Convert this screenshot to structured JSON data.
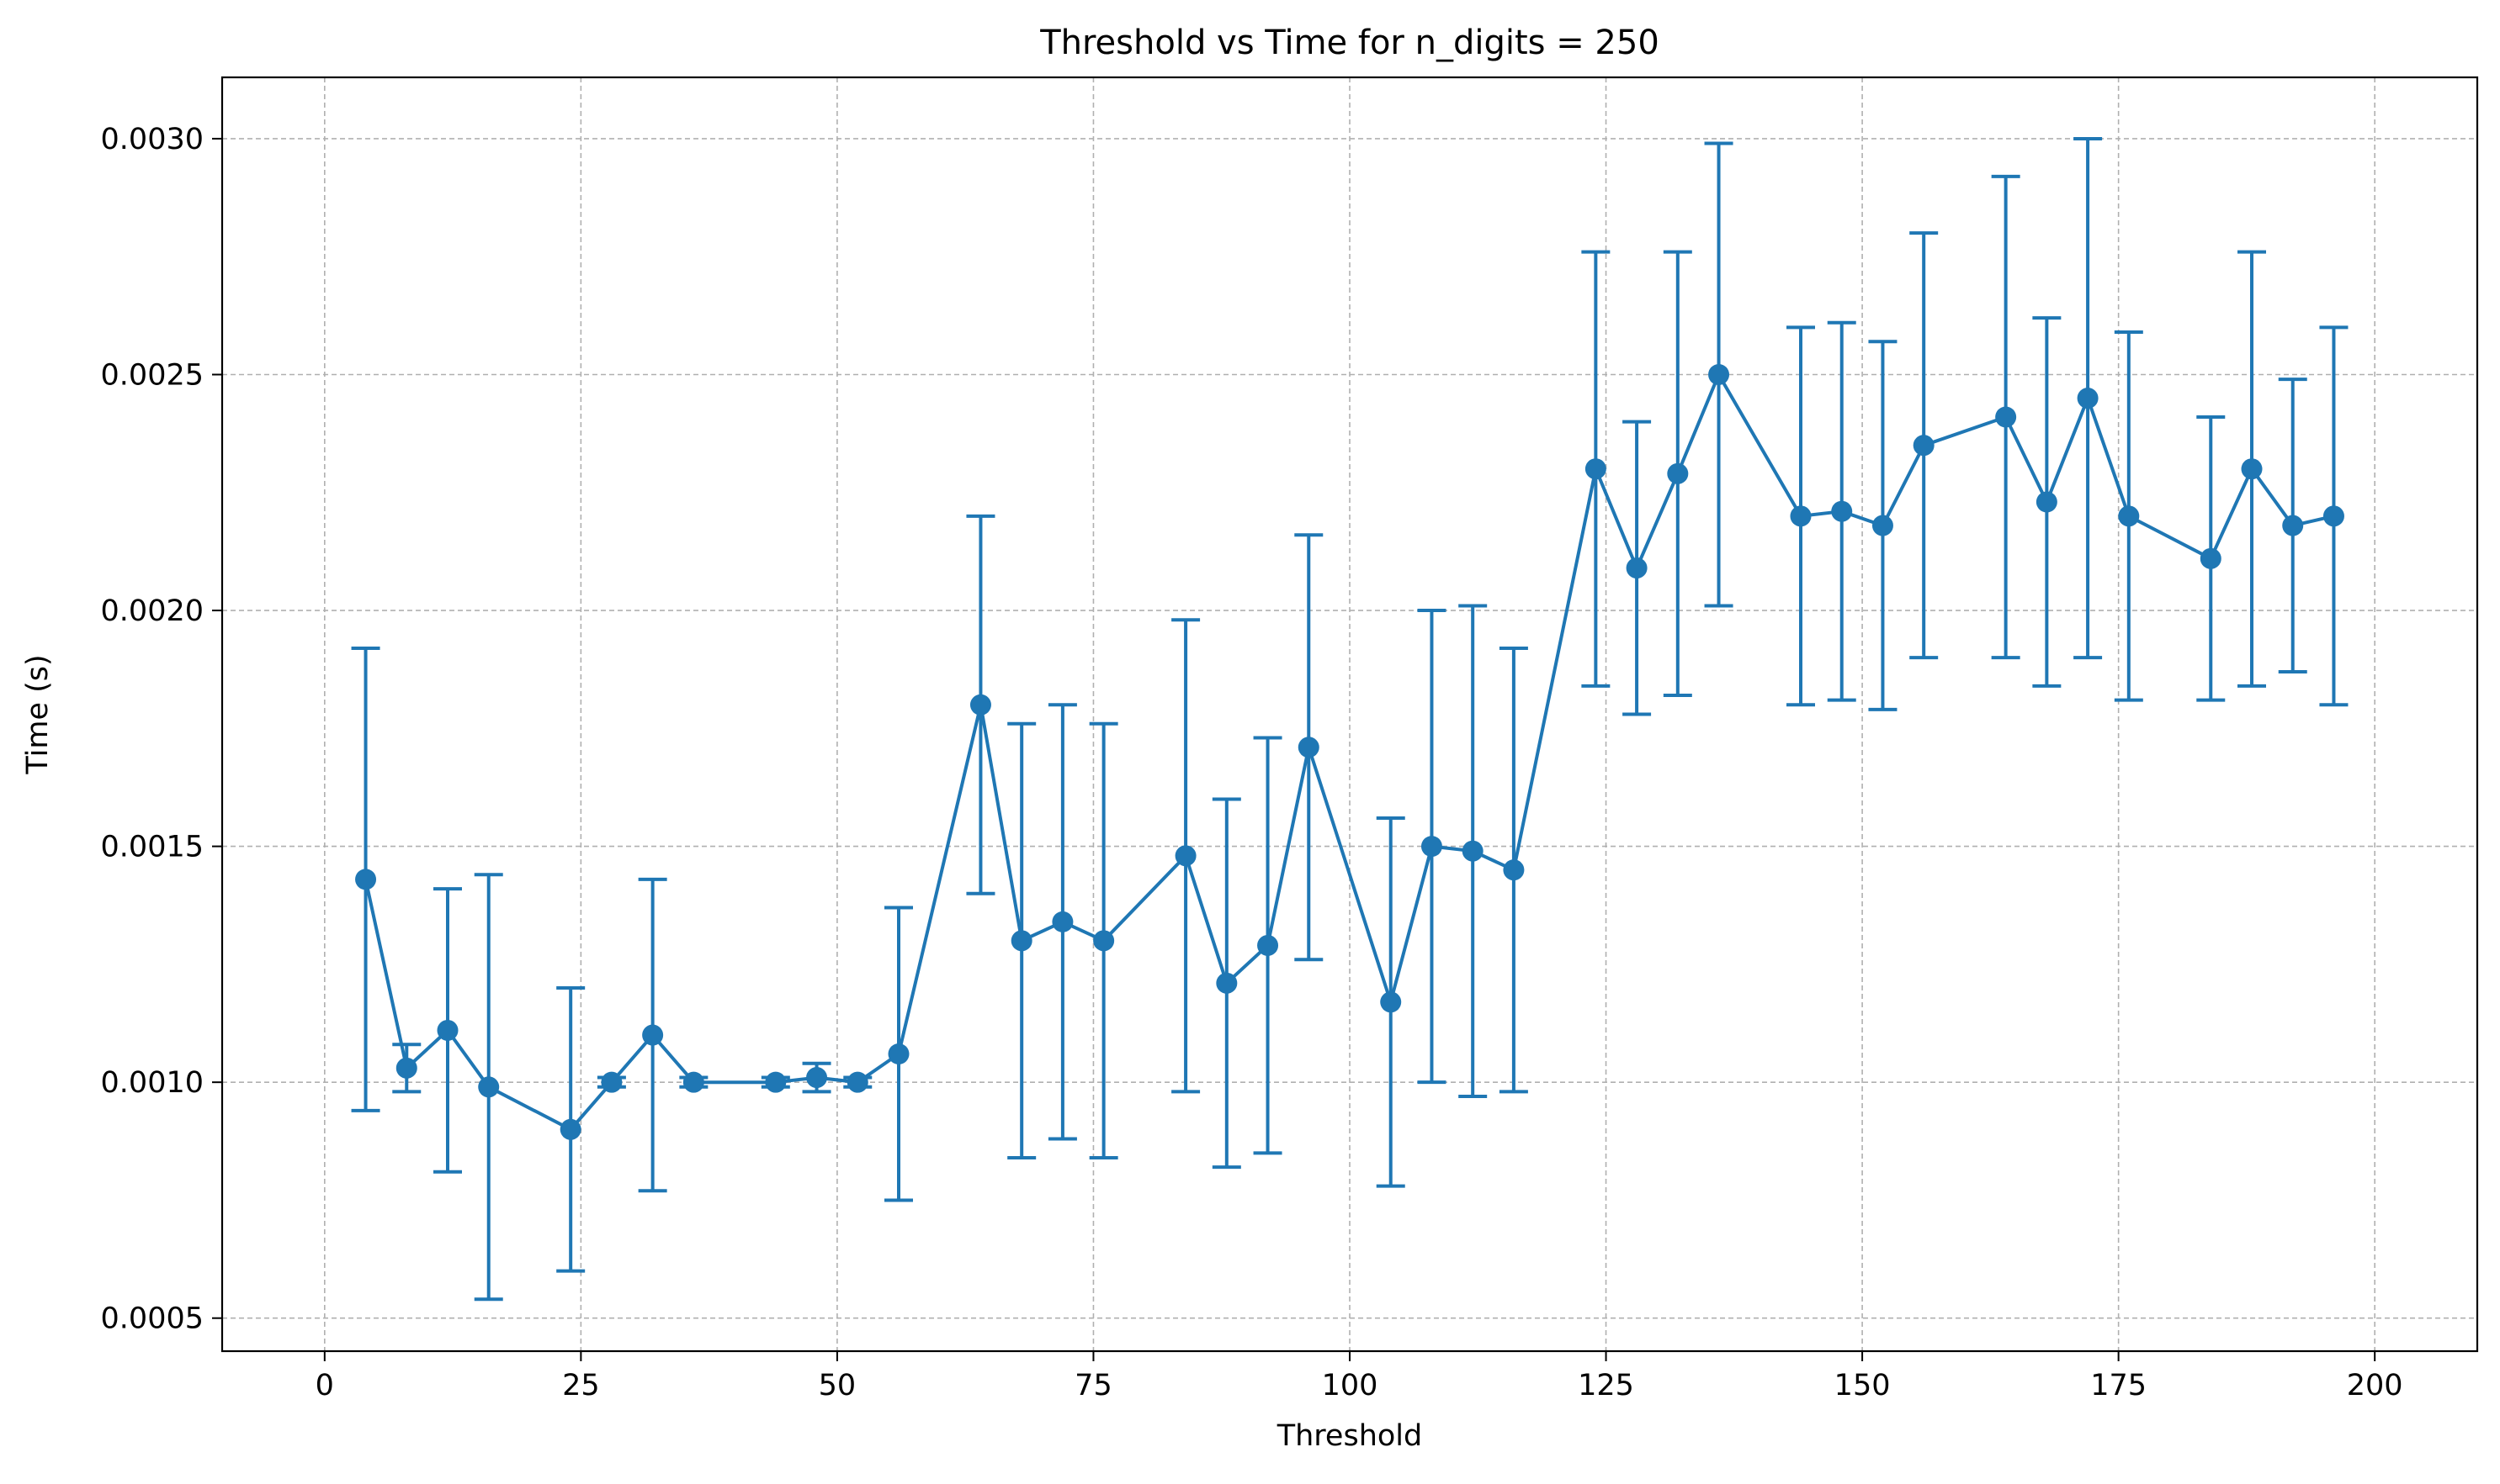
{
  "chart_data": {
    "type": "line",
    "title": "Threshold vs Time for n_digits = 250",
    "xlabel": "Threshold",
    "ylabel": "Time (s)",
    "xlim": [
      -10,
      210
    ],
    "ylim": [
      0.00043,
      0.00313
    ],
    "xticks": [
      0,
      25,
      50,
      75,
      100,
      125,
      150,
      175,
      200
    ],
    "xtick_labels": [
      "0",
      "25",
      "50",
      "75",
      "100",
      "125",
      "150",
      "175",
      "200"
    ],
    "yticks": [
      0.0005,
      0.001,
      0.0015,
      0.002,
      0.0025,
      0.003
    ],
    "ytick_labels": [
      "0.0005",
      "0.0010",
      "0.0015",
      "0.0020",
      "0.0025",
      "0.0030"
    ],
    "grid": true,
    "color": "#1f77b4",
    "error_bars": true,
    "series": [
      {
        "x": [
          4,
          8,
          12,
          16,
          24,
          28,
          32,
          36,
          44,
          48,
          52,
          56,
          64,
          68,
          72,
          76,
          84,
          88,
          92,
          96,
          104,
          108,
          112,
          116,
          124,
          128,
          132,
          136,
          144,
          148,
          152,
          156,
          164,
          168,
          172,
          176,
          184,
          188,
          192,
          196
        ],
        "y": [
          0.00143,
          0.00103,
          0.00111,
          0.00099,
          0.0009,
          0.001,
          0.0011,
          0.001,
          0.001,
          0.00101,
          0.001,
          0.00106,
          0.0018,
          0.0013,
          0.00134,
          0.0013,
          0.00148,
          0.00121,
          0.00129,
          0.00171,
          0.00117,
          0.0015,
          0.00149,
          0.00145,
          0.0023,
          0.00209,
          0.00229,
          0.0025,
          0.0022,
          0.00221,
          0.00218,
          0.00235,
          0.00241,
          0.00223,
          0.00245,
          0.0022,
          0.00211,
          0.0023,
          0.00218,
          0.0022
        ],
        "yerr": [
          0.00049,
          5e-05,
          0.0003,
          0.00045,
          0.0003,
          1e-05,
          0.00033,
          1e-05,
          1e-05,
          3e-05,
          1e-05,
          0.00031,
          0.0004,
          0.00046,
          0.00046,
          0.00046,
          0.0005,
          0.00039,
          0.00044,
          0.00045,
          0.00039,
          0.0005,
          0.00052,
          0.00047,
          0.00046,
          0.00031,
          0.00047,
          0.00049,
          0.0004,
          0.0004,
          0.00039,
          0.00045,
          0.00051,
          0.00039,
          0.00055,
          0.00039,
          0.0003,
          0.00046,
          0.00031,
          0.0004
        ]
      }
    ]
  }
}
